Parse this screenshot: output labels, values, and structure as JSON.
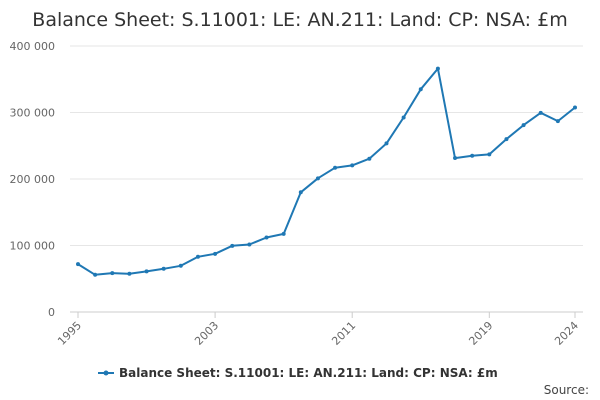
{
  "chart_data": {
    "type": "line",
    "title": "Balance Sheet: S.11001: LE: AN.211: Land: CP: NSA: £m",
    "xlabel": "",
    "ylabel": "",
    "ylim": [
      0,
      400000
    ],
    "y_ticks": [
      0,
      100000,
      200000,
      300000,
      400000
    ],
    "y_tick_labels": [
      "0",
      "100 000",
      "200 000",
      "300 000",
      "400 000"
    ],
    "x_range": [
      1995,
      2024
    ],
    "x_ticks": [
      1995,
      2003,
      2011,
      2019,
      2024
    ],
    "x_tick_labels": [
      "1995",
      "2003",
      "2011",
      "2019",
      "2024"
    ],
    "grid": true,
    "legend_position": "bottom-center",
    "series_color": "#1f78b4",
    "series": [
      {
        "name": "Balance Sheet: S.11001: LE: AN.211: Land: CP: NSA: £m",
        "x": [
          1995,
          1996,
          1997,
          1998,
          1999,
          2000,
          2001,
          2002,
          2003,
          2004,
          2005,
          2006,
          2007,
          2008,
          2009,
          2010,
          2011,
          2012,
          2013,
          2014,
          2015,
          2016,
          2017,
          2018,
          2019,
          2020,
          2021,
          2022,
          2023,
          2024
        ],
        "values": [
          72000,
          56000,
          58500,
          57500,
          61000,
          65000,
          69500,
          83000,
          87500,
          99500,
          101500,
          112000,
          117500,
          180000,
          201000,
          217000,
          220500,
          230500,
          253500,
          292500,
          335000,
          366000,
          231500,
          235000,
          237000,
          260000,
          281000,
          299500,
          287000,
          307500
        ]
      }
    ]
  },
  "source_label": "Source:"
}
